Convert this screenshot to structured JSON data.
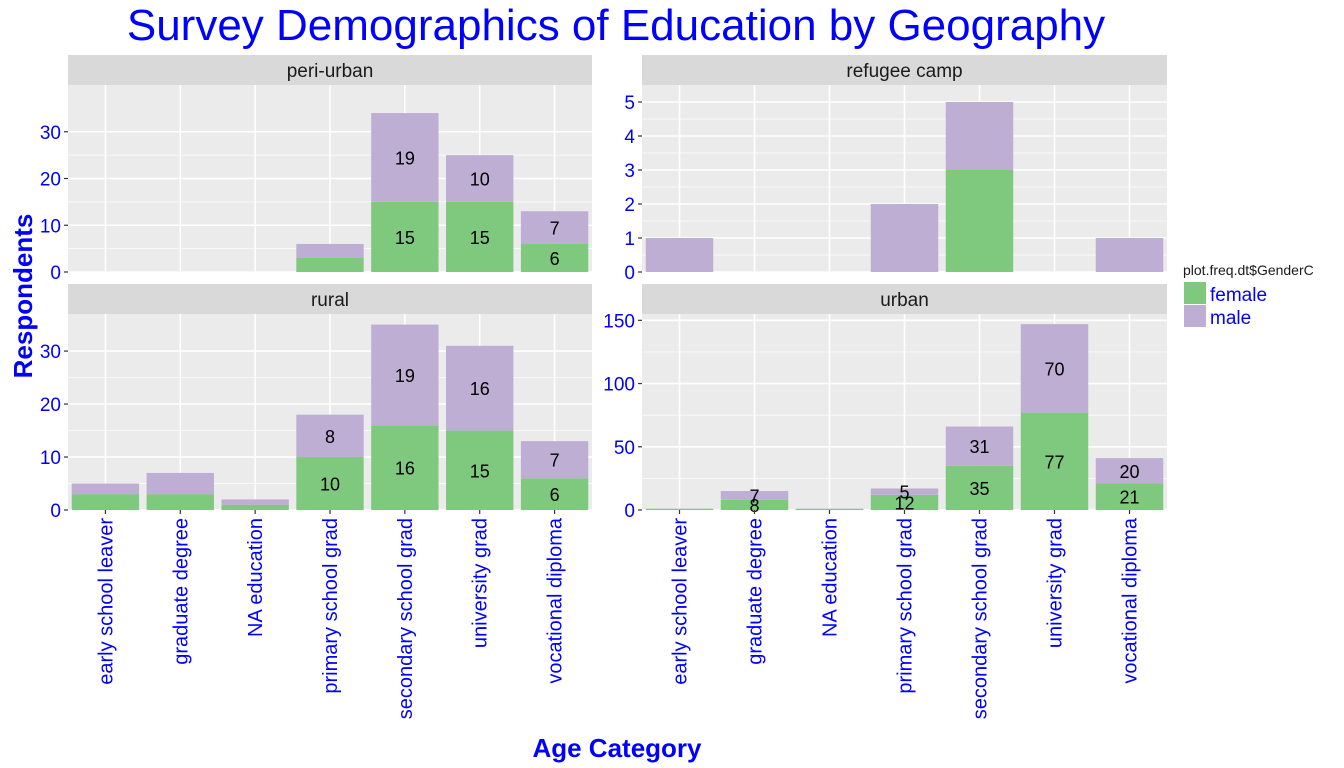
{
  "title": "Survey Demographics of Education by Geography",
  "colors": {
    "female": "#7fc97f",
    "male": "#beaed4",
    "panel_bg": "#ebebeb",
    "strip_bg": "#d9d9d9",
    "grid": "#ffffff",
    "text_blue": "#0000ff"
  },
  "chart_data": {
    "type": "bar",
    "stacked": true,
    "xlabel": "Age Category",
    "ylabel": "Respondents",
    "categories": [
      "early school leaver",
      "graduate degree",
      "NA education",
      "primary school grad",
      "secondary school grad",
      "university grad",
      "vocational diploma"
    ],
    "legend": {
      "title": "plot.freq.dt$GenderC",
      "entries": [
        "female",
        "male"
      ],
      "position": "right"
    },
    "panels": [
      {
        "name": "peri-urban",
        "ylim": [
          0,
          40
        ],
        "yticks": [
          0,
          10,
          20,
          30
        ],
        "series": [
          {
            "name": "female",
            "values": [
              0,
              0,
              0,
              3,
              15,
              15,
              6
            ],
            "labels": [
              "",
              "",
              "",
              "",
              "15",
              "15",
              "6"
            ]
          },
          {
            "name": "male",
            "values": [
              0,
              0,
              0,
              3,
              19,
              10,
              7
            ],
            "labels": [
              "",
              "",
              "",
              "",
              "19",
              "10",
              "7"
            ]
          }
        ]
      },
      {
        "name": "refugee camp",
        "ylim": [
          0,
          5.5
        ],
        "yticks": [
          0,
          1,
          2,
          3,
          4,
          5
        ],
        "series": [
          {
            "name": "female",
            "values": [
              0,
              0,
              0,
              0,
              3,
              0,
              0
            ],
            "labels": [
              "",
              "",
              "",
              "",
              "",
              "",
              ""
            ]
          },
          {
            "name": "male",
            "values": [
              1,
              0,
              0,
              2,
              2,
              0,
              1
            ],
            "labels": [
              "",
              "",
              "",
              "",
              "",
              "",
              ""
            ]
          }
        ]
      },
      {
        "name": "rural",
        "ylim": [
          0,
          37
        ],
        "yticks": [
          0,
          10,
          20,
          30
        ],
        "series": [
          {
            "name": "female",
            "values": [
              3,
              3,
              1,
              10,
              16,
              15,
              6
            ],
            "labels": [
              "",
              "",
              "",
              "10",
              "16",
              "15",
              "6"
            ]
          },
          {
            "name": "male",
            "values": [
              2,
              4,
              1,
              8,
              19,
              16,
              7
            ],
            "labels": [
              "",
              "",
              "",
              "8",
              "19",
              "16",
              "7"
            ]
          }
        ]
      },
      {
        "name": "urban",
        "ylim": [
          0,
          155
        ],
        "yticks": [
          0,
          50,
          100,
          150
        ],
        "series": [
          {
            "name": "female",
            "values": [
              1,
              8,
              1,
              12,
              35,
              77,
              21
            ],
            "labels": [
              "",
              "8",
              "",
              "12",
              "35",
              "77",
              "21"
            ]
          },
          {
            "name": "male",
            "values": [
              0,
              7,
              0,
              5,
              31,
              70,
              20
            ],
            "labels": [
              "",
              "7",
              "",
              "5",
              "31",
              "70",
              "20"
            ]
          }
        ]
      }
    ]
  }
}
